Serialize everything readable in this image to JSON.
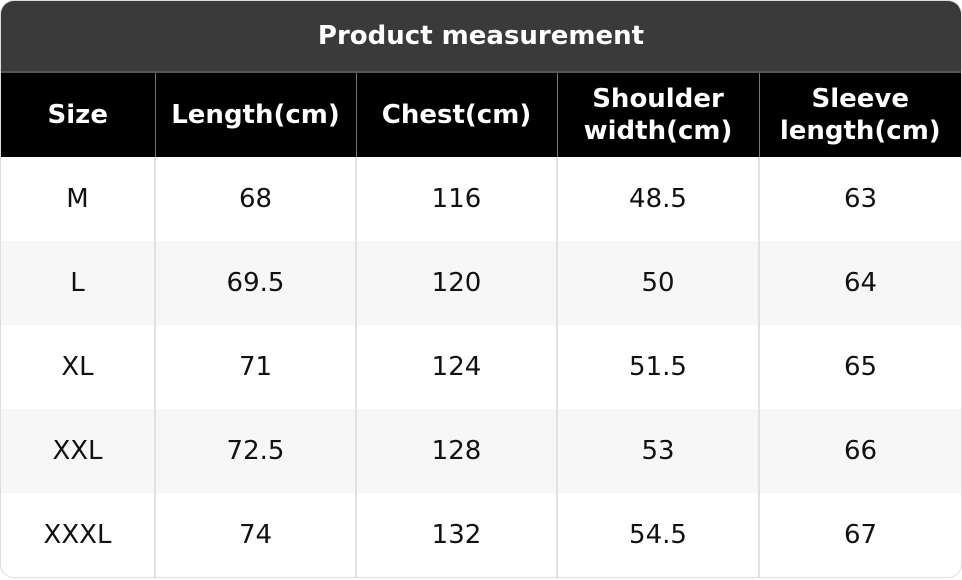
{
  "title": "Product measurement",
  "table": {
    "columns": [
      "Size",
      "Length(cm)",
      "Chest(cm)",
      "Shoulder width(cm)",
      "Sleeve length(cm)"
    ],
    "rows": [
      [
        "M",
        68,
        116,
        48.5,
        63
      ],
      [
        "L",
        69.5,
        120,
        50,
        64
      ],
      [
        "XL",
        71,
        124,
        51.5,
        65
      ],
      [
        "XXL",
        72.5,
        128,
        53,
        66
      ],
      [
        "XXXL",
        74,
        132,
        54.5,
        67
      ]
    ]
  }
}
